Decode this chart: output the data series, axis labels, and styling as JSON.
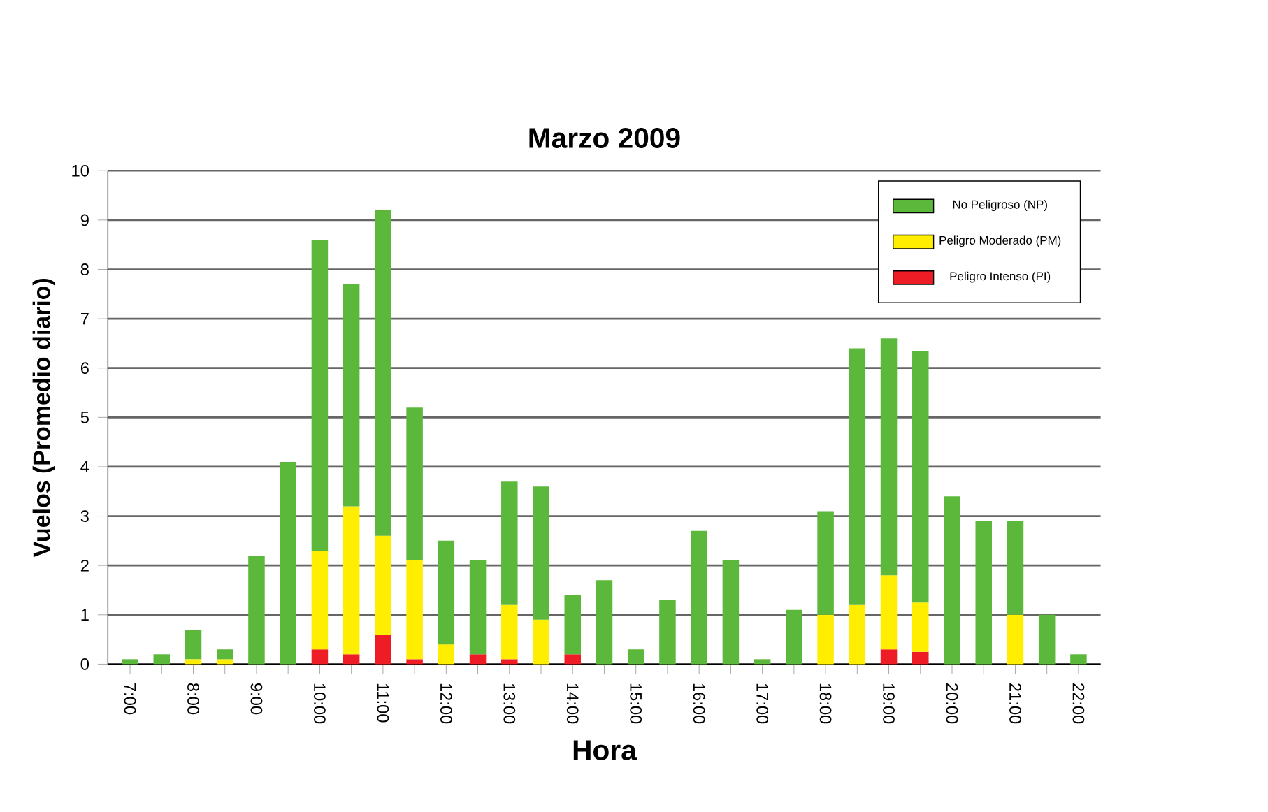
{
  "chart_data": {
    "type": "bar",
    "title": "Marzo 2009",
    "xlabel": "Hora",
    "ylabel": "Vuelos (Promedio diario)",
    "categories": [
      "7:00",
      null,
      "8:00",
      null,
      "9:00",
      null,
      "10:00",
      null,
      "11:00",
      null,
      "12:00",
      null,
      "13:00",
      null,
      "14:00",
      null,
      "15:00",
      null,
      "16:00",
      null,
      "17:00",
      null,
      "18:00",
      null,
      "19:00",
      null,
      "20:00",
      null,
      "21:00",
      null,
      "22:00"
    ],
    "stacked": true,
    "series": [
      {
        "name": "Peligro Intenso (PI)",
        "color": "#ee1c24",
        "values": [
          null,
          null,
          null,
          null,
          null,
          null,
          0.3,
          0.2,
          0.6,
          0.1,
          null,
          0.2,
          0.1,
          null,
          0.2,
          null,
          null,
          null,
          null,
          null,
          null,
          null,
          null,
          null,
          0.3,
          0.25,
          null,
          null,
          null,
          null,
          null
        ]
      },
      {
        "name": "Peligro Moderado (PM)",
        "color": "#ffee00",
        "values": [
          null,
          null,
          0.1,
          0.1,
          null,
          null,
          2.0,
          3.0,
          2.0,
          2.0,
          0.4,
          null,
          1.1,
          0.9,
          null,
          null,
          null,
          null,
          null,
          null,
          null,
          null,
          1.0,
          1.2,
          1.5,
          1.0,
          null,
          null,
          1.0,
          null,
          null
        ]
      },
      {
        "name": "No Peligroso (NP)",
        "color": "#5cb83a",
        "values": [
          0.1,
          0.2,
          0.6,
          0.2,
          2.2,
          4.1,
          6.3,
          4.5,
          6.6,
          3.1,
          2.1,
          1.9,
          2.5,
          2.7,
          1.2,
          1.7,
          0.3,
          1.3,
          2.7,
          2.1,
          0.1,
          1.1,
          2.1,
          5.2,
          4.8,
          5.1,
          3.4,
          2.9,
          1.9,
          1.0,
          0.2
        ]
      }
    ],
    "ylim": [
      0,
      10
    ],
    "yticks": [
      0,
      1,
      2,
      3,
      4,
      5,
      6,
      7,
      8,
      9,
      10
    ],
    "grid": "y",
    "legend": "top right"
  }
}
